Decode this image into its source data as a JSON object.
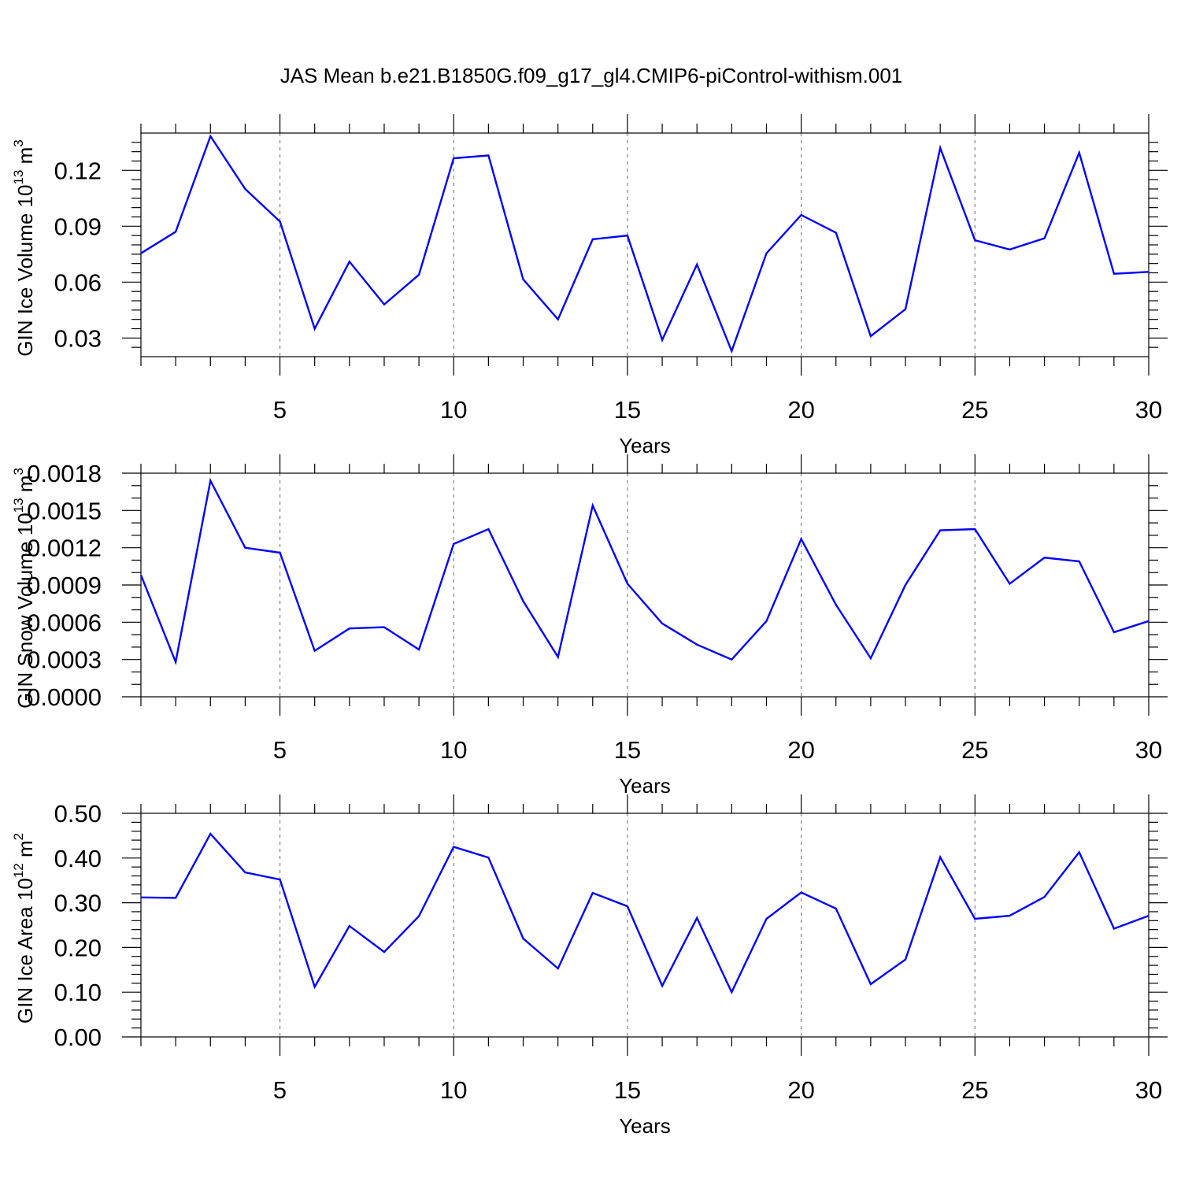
{
  "figure": {
    "title": "JAS Mean b.e21.B1850G.f09_g17_gl4.CMIP6-piControl-withism.001"
  },
  "colors": {
    "line": "#0000ff",
    "axis": "#000000",
    "gridline": "#808080"
  },
  "chart_data": [
    {
      "type": "line",
      "xlabel": "Years",
      "ylabel": "GIN Ice Volume 10",
      "ylabel_exp": "13",
      "ylabel_unit": " m",
      "ylabel_unit_exp": "3",
      "xlim": [
        1,
        30
      ],
      "ylim": [
        0.02,
        0.14
      ],
      "x_ticks": [
        5,
        10,
        15,
        20,
        25,
        30
      ],
      "y_ticks": [
        "0.03",
        "0.06",
        "0.09",
        "0.12"
      ],
      "vertical_gridlines": [
        5,
        10,
        15,
        20,
        25
      ],
      "x": [
        1,
        2,
        3,
        4,
        5,
        6,
        7,
        8,
        9,
        10,
        11,
        12,
        13,
        14,
        15,
        16,
        17,
        18,
        19,
        20,
        21,
        22,
        23,
        24,
        25,
        26,
        27,
        28,
        29,
        30
      ],
      "values": [
        0.0755,
        0.087,
        0.1383,
        0.11,
        0.0925,
        0.035,
        0.071,
        0.048,
        0.064,
        0.1265,
        0.128,
        0.0615,
        0.04,
        0.083,
        0.085,
        0.029,
        0.0695,
        0.023,
        0.0755,
        0.096,
        0.0865,
        0.031,
        0.0455,
        0.132,
        0.0825,
        0.0775,
        0.0835,
        0.1295,
        0.0645,
        0.0655
      ]
    },
    {
      "type": "line",
      "xlabel": "Years",
      "ylabel": "GIN Snow Volume 10",
      "ylabel_exp": "13",
      "ylabel_unit": " m",
      "ylabel_unit_exp": "3",
      "xlim": [
        1,
        30
      ],
      "ylim": [
        0.0,
        0.0018
      ],
      "x_ticks": [
        5,
        10,
        15,
        20,
        25,
        30
      ],
      "y_ticks": [
        "0.0000",
        "0.0003",
        "0.0006",
        "0.0009",
        "0.0012",
        "0.0015",
        "0.0018"
      ],
      "vertical_gridlines": [
        5,
        10,
        15,
        20,
        25
      ],
      "x": [
        1,
        2,
        3,
        4,
        5,
        6,
        7,
        8,
        9,
        10,
        11,
        12,
        13,
        14,
        15,
        16,
        17,
        18,
        19,
        20,
        21,
        22,
        23,
        24,
        25,
        26,
        27,
        28,
        29,
        30
      ],
      "values": [
        0.00098,
        0.00028,
        0.00174,
        0.0012,
        0.00116,
        0.00037,
        0.00055,
        0.00056,
        0.00038,
        0.00123,
        0.00135,
        0.00077,
        0.00032,
        0.00154,
        0.00091,
        0.00059,
        0.00042,
        0.0003,
        0.00061,
        0.00127,
        0.00074,
        0.00031,
        0.0009,
        0.00134,
        0.00135,
        0.00091,
        0.00112,
        0.00109,
        0.00052,
        0.00061
      ]
    },
    {
      "type": "line",
      "xlabel": "Years",
      "ylabel": "GIN Ice Area 10",
      "ylabel_exp": "12",
      "ylabel_unit": " m",
      "ylabel_unit_exp": "2",
      "xlim": [
        1,
        30
      ],
      "ylim": [
        0.0,
        0.5
      ],
      "x_ticks": [
        5,
        10,
        15,
        20,
        25,
        30
      ],
      "y_ticks": [
        "0.00",
        "0.10",
        "0.20",
        "0.30",
        "0.40",
        "0.50"
      ],
      "vertical_gridlines": [
        5,
        10,
        15,
        20,
        25
      ],
      "x": [
        1,
        2,
        3,
        4,
        5,
        6,
        7,
        8,
        9,
        10,
        11,
        12,
        13,
        14,
        15,
        16,
        17,
        18,
        19,
        20,
        21,
        22,
        23,
        24,
        25,
        26,
        27,
        28,
        29,
        30
      ],
      "values": [
        0.312,
        0.311,
        0.454,
        0.368,
        0.352,
        0.112,
        0.248,
        0.19,
        0.27,
        0.425,
        0.401,
        0.22,
        0.153,
        0.322,
        0.292,
        0.114,
        0.266,
        0.1,
        0.264,
        0.323,
        0.287,
        0.118,
        0.173,
        0.402,
        0.264,
        0.271,
        0.313,
        0.413,
        0.242,
        0.271
      ]
    }
  ]
}
